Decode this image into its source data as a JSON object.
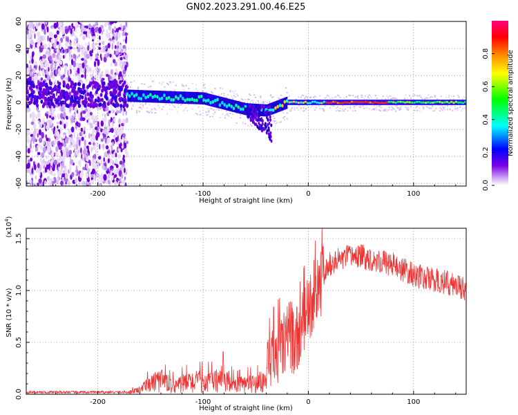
{
  "figure": {
    "title": "GN02.2023.291.00.46.E25"
  },
  "chart_data": [
    {
      "type": "heatmap",
      "title": "",
      "xlabel": "Height of straight line (km)",
      "ylabel": "Frequency (Hz)",
      "xlim": [
        -268,
        150
      ],
      "ylim": [
        -62,
        60
      ],
      "xticks": [
        -200,
        -100,
        0,
        100
      ],
      "yticks": [
        -60,
        -40,
        -20,
        0,
        20,
        40,
        60
      ],
      "xtick_labels": [
        "-200",
        "-100",
        "0",
        "100"
      ],
      "ytick_labels": [
        "-60",
        "-40",
        "-20",
        "0",
        "20",
        "40",
        "60"
      ],
      "colorbar": {
        "label": "Normalized spectral amplitude",
        "range": [
          0,
          1
        ],
        "ticks": [
          0.0,
          0.2,
          0.4,
          0.6,
          0.8
        ],
        "tick_labels": [
          "0.0",
          "0.2",
          "0.4",
          "0.6",
          "0.8"
        ],
        "colors": [
          "#ffffff",
          "#c89bf0",
          "#7b00e6",
          "#0000ff",
          "#00ffff",
          "#00ff00",
          "#ffff00",
          "#ff8000",
          "#ff0000",
          "#ff0080"
        ]
      },
      "regions": [
        {
          "name": "broadband noise",
          "x_range": [
            -268,
            -172
          ],
          "f_range": [
            -62,
            60
          ]
        },
        {
          "name": "signal band",
          "x_range": [
            -172,
            150
          ],
          "center_hz": [
            [
              -172,
              5
            ],
            [
              -100,
              3
            ],
            [
              -60,
              -5
            ],
            [
              -40,
              -6
            ],
            [
              -30,
              -3
            ],
            [
              -20,
              0
            ],
            [
              0,
              0
            ],
            [
              150,
              0
            ]
          ]
        },
        {
          "name": "descending tail",
          "x_range": [
            -60,
            -35
          ],
          "f_range": [
            -28,
            0
          ]
        }
      ],
      "grid": true
    },
    {
      "type": "line",
      "title": "",
      "xlabel": "Height of straight line (km)",
      "ylabel": "SNR (10 * v/v)",
      "y_multiplier": "(x10^4)",
      "y_multiplier_base": "(x10",
      "y_multiplier_exp": "4",
      "y_multiplier_close": ")",
      "xlim": [
        -268,
        150
      ],
      "ylim": [
        0,
        1.6
      ],
      "xticks": [
        -200,
        -100,
        0,
        100
      ],
      "yticks": [
        0.0,
        0.5,
        1.0,
        1.5
      ],
      "xtick_labels": [
        "-200",
        "-100",
        "0",
        "100"
      ],
      "ytick_labels": [
        "0.0",
        "0.5",
        "1.0",
        "1.5"
      ],
      "series": [
        {
          "color": "#ee3333",
          "x": [
            -268,
            -250,
            -220,
            -190,
            -170,
            -160,
            -150,
            -140,
            -130,
            -120,
            -110,
            -100,
            -90,
            -80,
            -70,
            -60,
            -50,
            -40,
            -35,
            -30,
            -25,
            -20,
            -15,
            -10,
            -5,
            0,
            5,
            10,
            15,
            20,
            30,
            40,
            50,
            60,
            70,
            80,
            90,
            100,
            110,
            120,
            130,
            140,
            150
          ],
          "y": [
            0.02,
            0.02,
            0.02,
            0.02,
            0.02,
            0.04,
            0.1,
            0.13,
            0.08,
            0.1,
            0.12,
            0.12,
            0.12,
            0.16,
            0.08,
            0.1,
            0.1,
            0.14,
            0.3,
            0.4,
            0.45,
            0.55,
            0.55,
            0.5,
            0.7,
            0.85,
            0.95,
            1.05,
            1.15,
            1.25,
            1.3,
            1.33,
            1.33,
            1.3,
            1.28,
            1.25,
            1.2,
            1.15,
            1.12,
            1.1,
            1.08,
            1.05,
            1.02
          ]
        }
      ],
      "grid": true
    }
  ]
}
